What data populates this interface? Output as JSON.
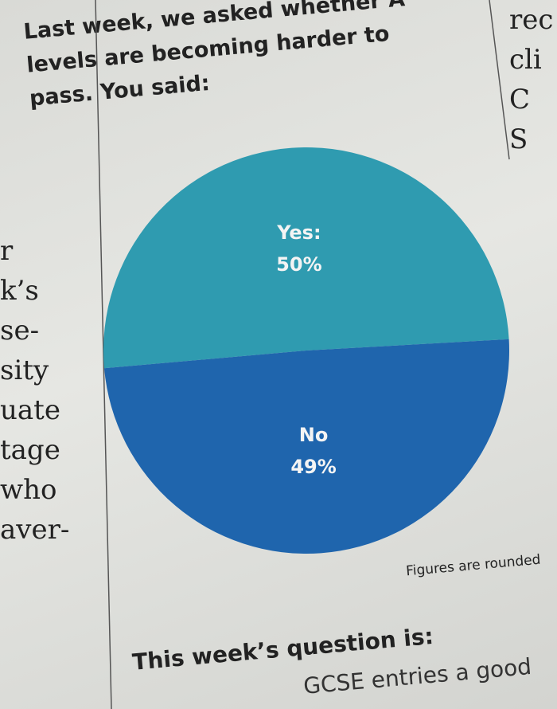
{
  "chart_data": {
    "type": "pie",
    "title": "Last week, we asked whether A levels are becoming harder to pass. You said:",
    "categories": [
      "Yes:",
      "No"
    ],
    "values": [
      50,
      49
    ],
    "value_labels": [
      "50%",
      "49%"
    ],
    "colors": [
      "#2f9bb0",
      "#1f65ad"
    ],
    "note": "Figures are rounded"
  },
  "page": {
    "left_column": [
      "r",
      "k’s",
      "se-",
      "sity",
      "uate",
      "tage",
      "who",
      "aver-"
    ],
    "right_column": [
      "rec",
      "cli",
      "C",
      "S"
    ],
    "next_question": {
      "heading": "This week’s question is:",
      "text": "GCSE entries a good"
    }
  }
}
